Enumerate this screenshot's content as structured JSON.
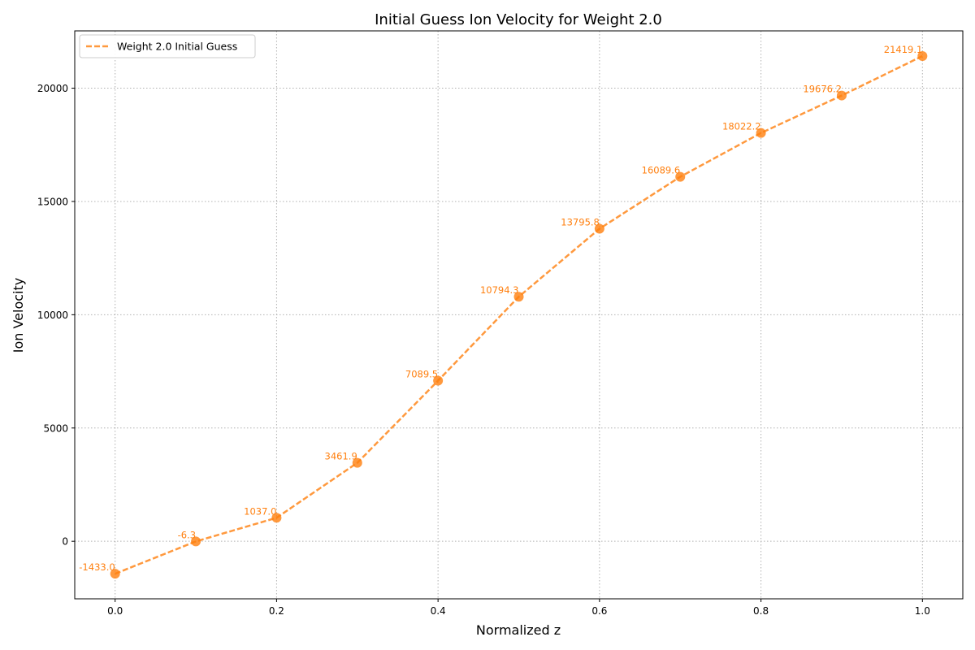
{
  "chart_data": {
    "type": "line",
    "title": "Initial Guess Ion Velocity for Weight 2.0",
    "xlabel": "Normalized z",
    "ylabel": "Ion Velocity",
    "xlim": [
      -0.05,
      1.05
    ],
    "ylim": [
      -2540,
      22530
    ],
    "x_ticks": [
      0.0,
      0.2,
      0.4,
      0.6,
      0.8,
      1.0
    ],
    "x_tick_labels": [
      "0.0",
      "0.2",
      "0.4",
      "0.6",
      "0.8",
      "1.0"
    ],
    "y_ticks": [
      0,
      5000,
      10000,
      15000,
      20000
    ],
    "y_tick_labels": [
      "0",
      "5000",
      "10000",
      "15000",
      "20000"
    ],
    "grid": true,
    "legend_position": "top-left",
    "series": [
      {
        "name": "Weight 2.0 Initial Guess",
        "color": "#ff7f0e",
        "line_style": "dashed",
        "marker": "circle",
        "x": [
          0.0,
          0.1,
          0.2,
          0.3,
          0.4,
          0.5,
          0.6,
          0.7,
          0.8,
          0.9,
          1.0
        ],
        "y": [
          -1433.0,
          -6.3,
          1037.0,
          3461.9,
          7089.5,
          10794.3,
          13795.8,
          16089.6,
          18022.2,
          19676.2,
          21419.1
        ],
        "labels": [
          "-1433.0",
          "-6.3",
          "1037.0",
          "3461.9",
          "7089.5",
          "10794.3",
          "13795.8",
          "16089.6",
          "18022.2",
          "19676.2",
          "21419.1"
        ]
      }
    ]
  }
}
